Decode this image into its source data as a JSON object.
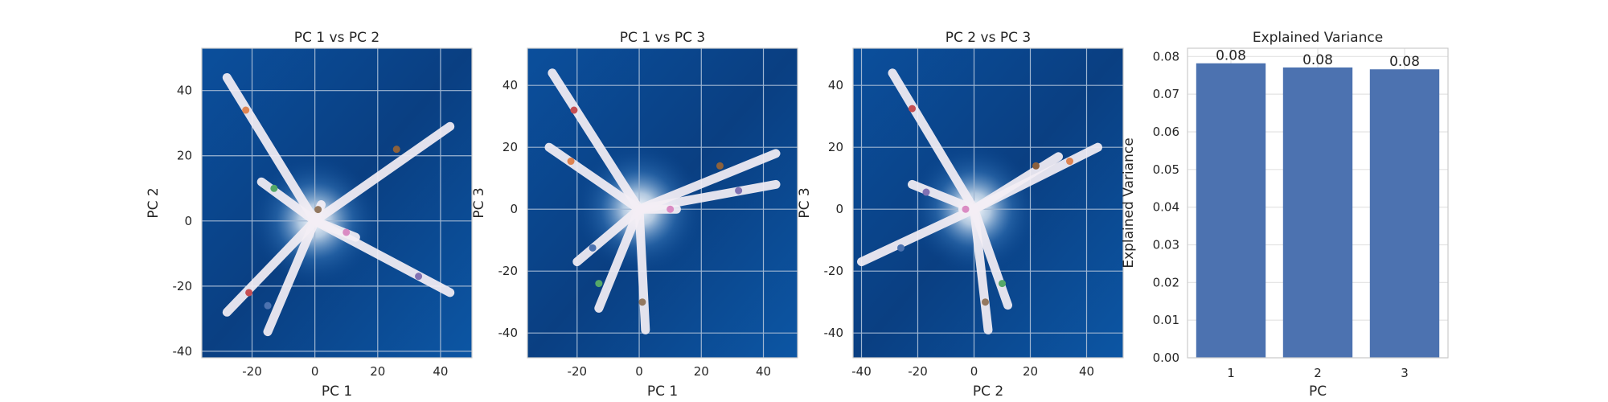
{
  "chart_data": [
    {
      "type": "scatter",
      "title": "PC 1 vs PC 2",
      "xlabel": "PC 1",
      "ylabel": "PC 2",
      "xlim": [
        -36,
        50
      ],
      "ylim": [
        -42,
        53
      ],
      "xticks": [
        -20,
        0,
        20,
        40
      ],
      "yticks": [
        -40,
        -20,
        0,
        20,
        40
      ],
      "grid": true,
      "background": "density-heatmap",
      "trails": [
        [
          [
            -28,
            44
          ],
          [
            0,
            0
          ]
        ],
        [
          [
            -28,
            -28
          ],
          [
            0,
            0
          ]
        ],
        [
          [
            -15,
            -34
          ],
          [
            0,
            0
          ]
        ],
        [
          [
            -17,
            12
          ],
          [
            0,
            0
          ]
        ],
        [
          [
            43,
            29
          ],
          [
            0,
            0
          ]
        ],
        [
          [
            43,
            -22
          ],
          [
            0,
            0
          ]
        ],
        [
          [
            13,
            -5
          ],
          [
            0,
            0
          ]
        ],
        [
          [
            2,
            5
          ],
          [
            0,
            0
          ]
        ]
      ],
      "points": [
        {
          "x": -22,
          "y": 34,
          "color": "#dd8452"
        },
        {
          "x": 26,
          "y": 22,
          "color": "#8c613c"
        },
        {
          "x": -13,
          "y": 10,
          "color": "#55a868"
        },
        {
          "x": 1,
          "y": 3.5,
          "color": "#937860"
        },
        {
          "x": 10,
          "y": -3.5,
          "color": "#da8bc3"
        },
        {
          "x": 33,
          "y": -17,
          "color": "#8172b3"
        },
        {
          "x": -21,
          "y": -22,
          "color": "#c44e52"
        },
        {
          "x": -15,
          "y": -26,
          "color": "#4c72b0"
        }
      ]
    },
    {
      "type": "scatter",
      "title": "PC 1 vs PC 3",
      "xlabel": "PC 1",
      "ylabel": "PC 3",
      "xlim": [
        -36,
        51
      ],
      "ylim": [
        -48,
        52
      ],
      "xticks": [
        -20,
        0,
        20,
        40
      ],
      "yticks": [
        -40,
        -20,
        0,
        20,
        40
      ],
      "grid": true,
      "background": "density-heatmap",
      "trails": [
        [
          [
            -28,
            44
          ],
          [
            0,
            0
          ]
        ],
        [
          [
            -29,
            20
          ],
          [
            0,
            0
          ]
        ],
        [
          [
            -20,
            -17
          ],
          [
            0,
            0
          ]
        ],
        [
          [
            -13,
            -32
          ],
          [
            0,
            0
          ]
        ],
        [
          [
            2,
            -39
          ],
          [
            0,
            0
          ]
        ],
        [
          [
            44,
            18
          ],
          [
            0,
            0
          ]
        ],
        [
          [
            44,
            8
          ],
          [
            0,
            0
          ]
        ],
        [
          [
            12,
            0
          ],
          [
            0,
            0
          ]
        ]
      ],
      "points": [
        {
          "x": -21,
          "y": 32,
          "color": "#c44e52"
        },
        {
          "x": -22,
          "y": 15.5,
          "color": "#dd8452"
        },
        {
          "x": 26,
          "y": 14,
          "color": "#8c613c"
        },
        {
          "x": 32,
          "y": 6,
          "color": "#8172b3"
        },
        {
          "x": 10,
          "y": 0,
          "color": "#da8bc3"
        },
        {
          "x": -15,
          "y": -12.5,
          "color": "#4c72b0"
        },
        {
          "x": -13,
          "y": -24,
          "color": "#55a868"
        },
        {
          "x": 1,
          "y": -30,
          "color": "#937860"
        }
      ]
    },
    {
      "type": "scatter",
      "title": "PC 2 vs PC 3",
      "xlabel": "PC 2",
      "ylabel": "PC 3",
      "xlim": [
        -43,
        53
      ],
      "ylim": [
        -48,
        52
      ],
      "xticks": [
        -40,
        -20,
        0,
        20,
        40
      ],
      "yticks": [
        -40,
        -20,
        0,
        20,
        40
      ],
      "grid": true,
      "background": "density-heatmap",
      "trails": [
        [
          [
            -29,
            44
          ],
          [
            0,
            0
          ]
        ],
        [
          [
            -40,
            -17
          ],
          [
            0,
            0
          ]
        ],
        [
          [
            -22,
            8
          ],
          [
            0,
            0
          ]
        ],
        [
          [
            12,
            -31
          ],
          [
            0,
            0
          ]
        ],
        [
          [
            5,
            -39
          ],
          [
            0,
            0
          ]
        ],
        [
          [
            44,
            20
          ],
          [
            0,
            0
          ]
        ],
        [
          [
            30,
            17
          ],
          [
            0,
            0
          ]
        ],
        [
          [
            -4,
            0
          ],
          [
            0,
            0
          ]
        ]
      ],
      "points": [
        {
          "x": -22,
          "y": 32.5,
          "color": "#c44e52"
        },
        {
          "x": -17,
          "y": 5.5,
          "color": "#8172b3"
        },
        {
          "x": 22,
          "y": 14,
          "color": "#8c613c"
        },
        {
          "x": 34,
          "y": 15.5,
          "color": "#dd8452"
        },
        {
          "x": -3,
          "y": 0,
          "color": "#da8bc3"
        },
        {
          "x": -26,
          "y": -12.5,
          "color": "#4c72b0"
        },
        {
          "x": 10,
          "y": -24,
          "color": "#55a868"
        },
        {
          "x": 4,
          "y": -30,
          "color": "#937860"
        }
      ]
    },
    {
      "type": "bar",
      "title": "Explained Variance",
      "xlabel": "PC",
      "ylabel": "Explained Variance",
      "categories": [
        "1",
        "2",
        "3"
      ],
      "values": [
        0.0782,
        0.0771,
        0.0766
      ],
      "data_labels": [
        "0.08",
        "0.08",
        "0.08"
      ],
      "ylim": [
        0,
        0.0822
      ],
      "yticks": [
        "0.00",
        "0.01",
        "0.02",
        "0.03",
        "0.04",
        "0.05",
        "0.06",
        "0.07",
        "0.08"
      ],
      "bar_color": "#4c72b0",
      "grid": true
    }
  ]
}
